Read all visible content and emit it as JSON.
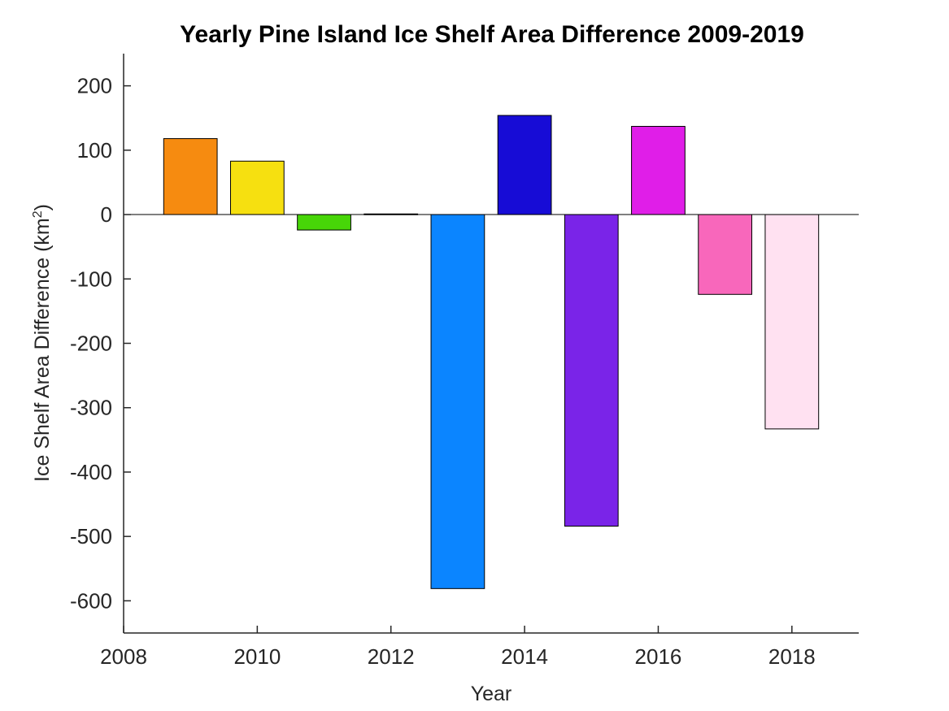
{
  "chart_data": {
    "type": "bar",
    "title": "Yearly Pine Island Ice Shelf Area Difference 2009-2019",
    "xlabel": "Year",
    "ylabel": "Ice Shelf Area Difference (km",
    "ylabel_sup": "2",
    "ylabel_suffix": ")",
    "xlim": [
      2008,
      2019
    ],
    "ylim": [
      -650,
      250
    ],
    "x_ticks": [
      2008,
      2010,
      2012,
      2014,
      2016,
      2018
    ],
    "y_ticks": [
      -600,
      -500,
      -400,
      -300,
      -200,
      -100,
      0,
      100,
      200
    ],
    "x_tick_labels": [
      "2008",
      "2010",
      "2012",
      "2014",
      "2016",
      "2018"
    ],
    "y_tick_labels": [
      "-600",
      "-500",
      "-400",
      "-300",
      "-200",
      "-100",
      "0",
      "100",
      "200"
    ],
    "bar_width": 0.8,
    "categories": [
      2009,
      2010,
      2011,
      2012,
      2013,
      2014,
      2015,
      2016,
      2017,
      2018
    ],
    "values": [
      118,
      83,
      -24,
      1,
      -581,
      154,
      -484,
      137,
      -124,
      -333
    ],
    "colors": [
      "#f68b10",
      "#f6e010",
      "#47d608",
      "#000000",
      "#0b85ff",
      "#170cd6",
      "#7a24e8",
      "#e01ee8",
      "#f867bb",
      "#ffe1f1"
    ],
    "grid": false,
    "zero_line": true
  }
}
